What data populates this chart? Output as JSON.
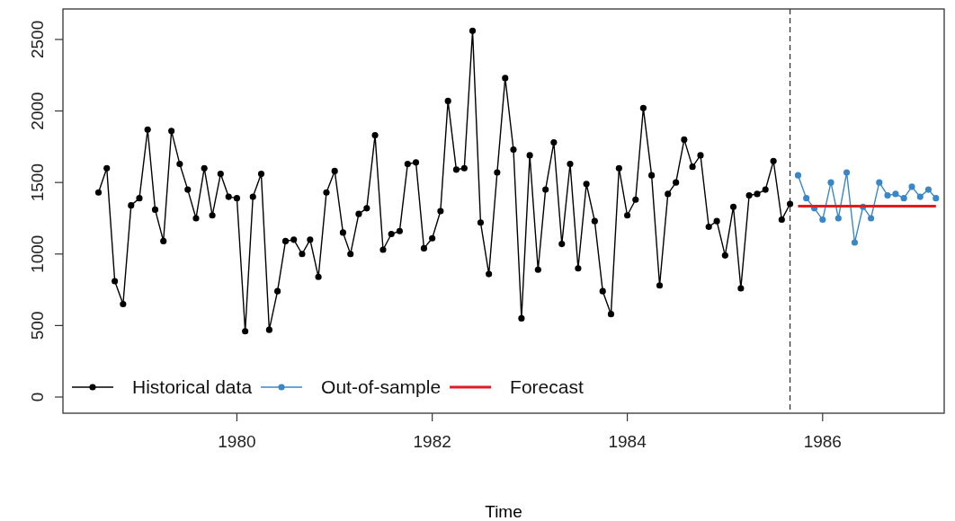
{
  "chart_data": {
    "type": "line",
    "xlabel": "Time",
    "xlim": [
      "1978-03-21",
      "1987-04-01"
    ],
    "xticks": [
      "1980",
      "1982",
      "1984",
      "1986"
    ],
    "ylim": [
      -113,
      2713
    ],
    "yticks": [
      0,
      500,
      1000,
      1500,
      2000,
      2500
    ],
    "grid": false,
    "legend": "bottom left",
    "line_style": "solid",
    "ref_lines": [
      {
        "axis": "x",
        "value": "1985-09",
        "color": "#333333",
        "line_style": "dashed"
      }
    ],
    "series": [
      {
        "name": "Historical data",
        "color": "#000000",
        "marker": "circle",
        "x": [
          "1978-08",
          "1978-09",
          "1978-10",
          "1978-11",
          "1978-12",
          "1979-01",
          "1979-02",
          "1979-03",
          "1979-04",
          "1979-05",
          "1979-06",
          "1979-07",
          "1979-08",
          "1979-09",
          "1979-10",
          "1979-11",
          "1979-12",
          "1980-01",
          "1980-02",
          "1980-03",
          "1980-04",
          "1980-05",
          "1980-06",
          "1980-07",
          "1980-08",
          "1980-09",
          "1980-10",
          "1980-11",
          "1980-12",
          "1981-01",
          "1981-02",
          "1981-03",
          "1981-04",
          "1981-05",
          "1981-06",
          "1981-07",
          "1981-08",
          "1981-09",
          "1981-10",
          "1981-11",
          "1981-12",
          "1982-01",
          "1982-02",
          "1982-03",
          "1982-04",
          "1982-05",
          "1982-06",
          "1982-07",
          "1982-08",
          "1982-09",
          "1982-10",
          "1982-11",
          "1982-12",
          "1983-01",
          "1983-02",
          "1983-03",
          "1983-04",
          "1983-05",
          "1983-06",
          "1983-07",
          "1983-08",
          "1983-09",
          "1983-10",
          "1983-11",
          "1983-12",
          "1984-01",
          "1984-02",
          "1984-03",
          "1984-04",
          "1984-05",
          "1984-06",
          "1984-07",
          "1984-08",
          "1984-09",
          "1984-10",
          "1984-11",
          "1984-12",
          "1985-01",
          "1985-02",
          "1985-03",
          "1985-04",
          "1985-05",
          "1985-06",
          "1985-07",
          "1985-08",
          "1985-09"
        ],
        "values": [
          1430,
          1600,
          810,
          650,
          1340,
          1390,
          1870,
          1310,
          1090,
          1860,
          1630,
          1450,
          1250,
          1600,
          1270,
          1560,
          1400,
          1390,
          460,
          1400,
          1560,
          470,
          740,
          1090,
          1100,
          1000,
          1100,
          840,
          1430,
          1580,
          1150,
          1000,
          1280,
          1320,
          1830,
          1030,
          1140,
          1160,
          1630,
          1640,
          1040,
          1110,
          1300,
          2070,
          1590,
          1600,
          2560,
          1220,
          860,
          1570,
          2230,
          1730,
          550,
          1690,
          890,
          1450,
          1780,
          1070,
          1630,
          900,
          1490,
          1230,
          740,
          580,
          1600,
          1270,
          1380,
          2020,
          1550,
          780,
          1420,
          1500,
          1800,
          1610,
          1690,
          1190,
          1230,
          990,
          1330,
          760,
          1410,
          1420,
          1450,
          1650,
          1240,
          1350
        ]
      },
      {
        "name": "Out-of-sample",
        "color": "#3a87c8",
        "marker": "circle",
        "x": [
          "1985-10",
          "1985-11",
          "1985-12",
          "1986-01",
          "1986-02",
          "1986-03",
          "1986-04",
          "1986-05",
          "1986-06",
          "1986-07",
          "1986-08",
          "1986-09",
          "1986-10",
          "1986-11",
          "1986-12",
          "1987-01",
          "1987-02",
          "1987-03"
        ],
        "values": [
          1550,
          1390,
          1320,
          1240,
          1500,
          1250,
          1570,
          1080,
          1330,
          1250,
          1500,
          1410,
          1420,
          1390,
          1470,
          1400,
          1450,
          1390
        ]
      },
      {
        "name": "Forecast",
        "color": "#e41a1c",
        "marker": "none",
        "x": [
          "1985-10",
          "1987-03"
        ],
        "values": [
          1335,
          1335
        ]
      }
    ]
  }
}
